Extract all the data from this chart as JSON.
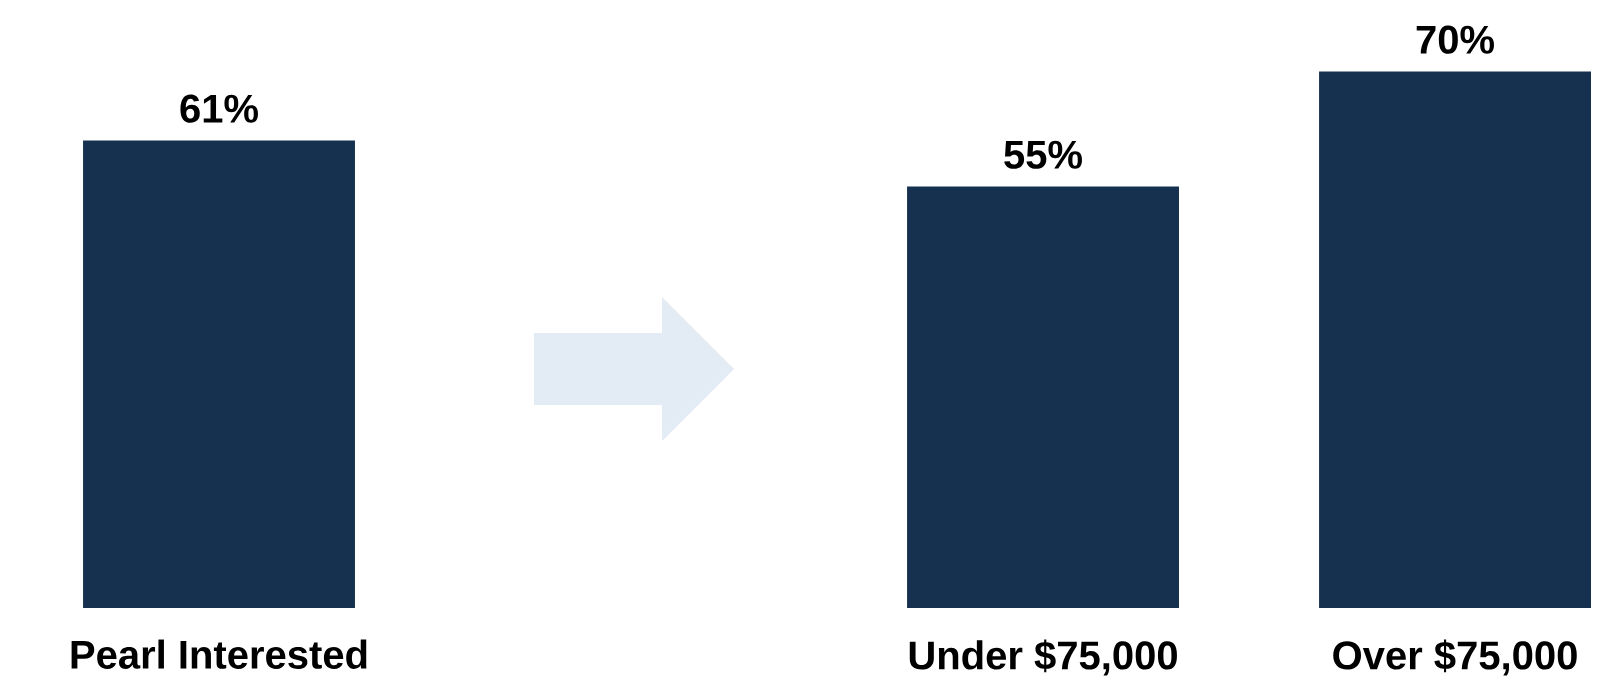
{
  "chart_data": {
    "type": "bar",
    "categories": [
      "Pearl Interested",
      null,
      "Under $75,000",
      "Over $75,000"
    ],
    "values": [
      61,
      null,
      55,
      70
    ],
    "value_labels": [
      "61%",
      null,
      "55%",
      "70%"
    ],
    "color": "#16304f",
    "tick_labels": "x"
  }
}
